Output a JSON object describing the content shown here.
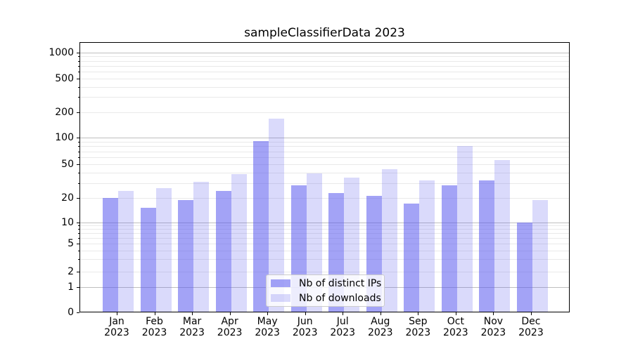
{
  "chart_data": {
    "type": "bar",
    "title": "sampleClassifierData 2023",
    "categories": [
      "Jan 2023",
      "Feb 2023",
      "Mar 2023",
      "Apr 2023",
      "May 2023",
      "Jun 2023",
      "Jul 2023",
      "Aug 2023",
      "Sep 2023",
      "Oct 2023",
      "Nov 2023",
      "Dec 2023"
    ],
    "series": [
      {
        "name": "Nb of distinct IPs",
        "color": "rgba(88,88,238,0.55)",
        "values": [
          20,
          15,
          19,
          24,
          92,
          28,
          23,
          21,
          17,
          28,
          32,
          10
        ]
      },
      {
        "name": "Nb of downloads",
        "color": "rgba(88,88,238,0.22)",
        "values": [
          24,
          26,
          31,
          38,
          167,
          39,
          35,
          44,
          32,
          80,
          56,
          19
        ]
      }
    ],
    "yscale": "symlog",
    "y_ticks": [
      0,
      1,
      2,
      5,
      10,
      20,
      50,
      100,
      200,
      500,
      1000
    ],
    "ylim": [
      0,
      1300
    ],
    "xlabel": "",
    "ylabel": "",
    "grid": "both",
    "legend_position": "lower center"
  },
  "colors": {
    "bar_ips": "rgba(88,88,238,0.55)",
    "bar_downloads": "rgba(88,88,238,0.22)",
    "major_grid": "#bfbfbf",
    "minor_grid": "#e9e9e9",
    "axis": "#000000",
    "background": "#ffffff",
    "legend_border": "#cccccc"
  }
}
